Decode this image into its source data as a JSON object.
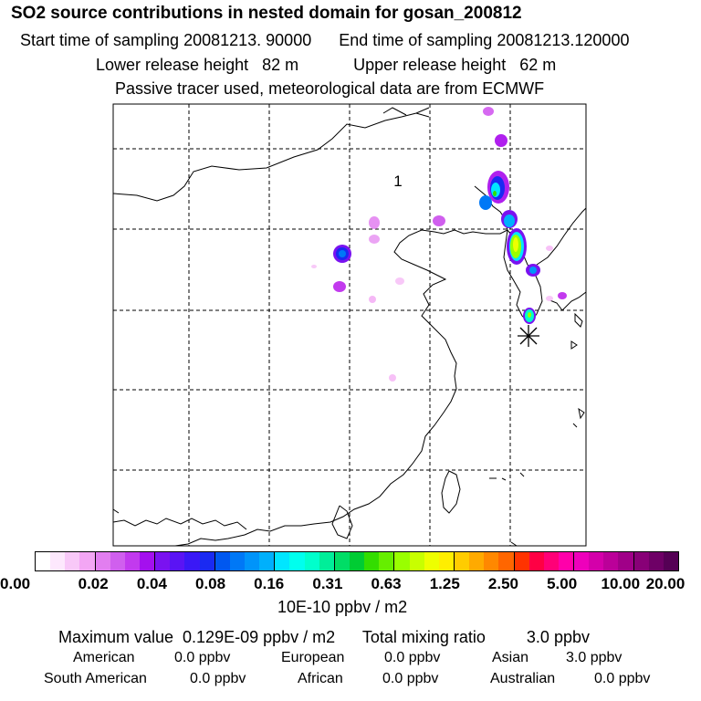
{
  "header": {
    "title": "SO2 source contributions in nested domain for gosan_200812",
    "start_label": "Start time of sampling 20081213. 90000",
    "end_label": "End time of sampling 20081213.120000",
    "lower_label": "Lower release height   82 m",
    "upper_label": "Upper release height   62 m",
    "tracer_line": "Passive tracer used, meteorological data are from ECMWF"
  },
  "map": {
    "cluster_label": "1",
    "receptor_marker": "asterisk-icon"
  },
  "colorbar": {
    "ticks": [
      "0.00",
      "0.02",
      "0.04",
      "0.08",
      "0.16",
      "0.31",
      "0.63",
      "1.25",
      "2.50",
      "5.00",
      "10.00",
      "20.00"
    ],
    "colors": [
      "#ffffff",
      "#fde8fd",
      "#f8c8f8",
      "#f3a6f4",
      "#e27ef0",
      "#d05fee",
      "#c23aee",
      "#a410ee",
      "#7a12f0",
      "#5a14f4",
      "#3a18f6",
      "#1a2af2",
      "#0058f0",
      "#0078f6",
      "#0094fa",
      "#00b0fc",
      "#00e6ff",
      "#00ffee",
      "#00ffcc",
      "#00ee99",
      "#00dd66",
      "#00cc33",
      "#33dd00",
      "#66ee00",
      "#99ff00",
      "#c8ff00",
      "#eeff00",
      "#ffee00",
      "#ffcc00",
      "#ffaa00",
      "#ff8800",
      "#ff6600",
      "#ff3300",
      "#ff0044",
      "#ff0077",
      "#ff00aa",
      "#ee00bb",
      "#d400aa",
      "#bb0099",
      "#a00088",
      "#880077",
      "#6e0066",
      "#550055"
    ],
    "unit": "10E-10 ppbv / m2"
  },
  "summary": {
    "max_line": "Maximum value  0.129E-09 ppbv / m2",
    "total_label": "Total mixing ratio",
    "total_value": "3.0 ppbv",
    "regions": [
      {
        "name": "American",
        "value": "0.0 ppbv"
      },
      {
        "name": "European",
        "value": "0.0 ppbv"
      },
      {
        "name": "Asian",
        "value": "3.0 ppbv"
      },
      {
        "name": "South American",
        "value": "0.0 ppbv"
      },
      {
        "name": "African",
        "value": "0.0 ppbv"
      },
      {
        "name": "Australian",
        "value": "0.0 ppbv"
      }
    ]
  }
}
